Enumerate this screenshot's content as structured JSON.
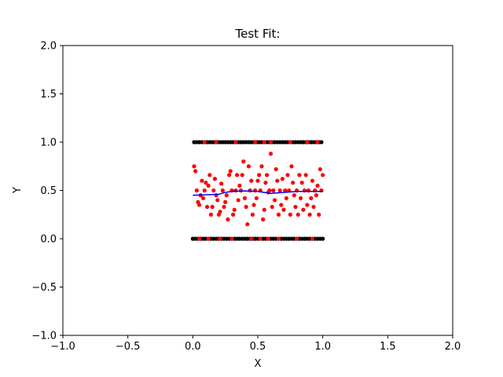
{
  "chart_data": {
    "type": "scatter",
    "title": "Test Fit:",
    "xlabel": "X",
    "ylabel": "Y",
    "xlim": [
      -1.0,
      2.0
    ],
    "ylim": [
      -1.0,
      2.0
    ],
    "xticks": [
      "−1.0",
      "−0.5",
      "0.0",
      "0.5",
      "1.0",
      "1.5",
      "2.0"
    ],
    "xtick_values": [
      -1.0,
      -0.5,
      0.0,
      0.5,
      1.0,
      1.5,
      2.0
    ],
    "yticks": [
      "−1.0",
      "−0.5",
      "0.0",
      "0.5",
      "1.0",
      "1.5",
      "2.0"
    ],
    "ytick_values": [
      -1.0,
      -0.5,
      0.0,
      0.5,
      1.0,
      1.5,
      2.0
    ],
    "grid": false,
    "colors": {
      "training_points": "#000000",
      "predicted_points": "#ff0000",
      "fit_line": "#0000ff"
    },
    "series": [
      {
        "style": "black-dots",
        "points": [
          [
            0.0,
            0
          ],
          [
            0.02,
            0
          ],
          [
            0.04,
            0
          ],
          [
            0.06,
            0
          ],
          [
            0.08,
            0
          ],
          [
            0.1,
            0
          ],
          [
            0.12,
            0
          ],
          [
            0.14,
            0
          ],
          [
            0.16,
            0
          ],
          [
            0.18,
            0
          ],
          [
            0.2,
            0
          ],
          [
            0.22,
            0
          ],
          [
            0.24,
            0
          ],
          [
            0.26,
            0
          ],
          [
            0.28,
            0
          ],
          [
            0.3,
            0
          ],
          [
            0.32,
            0
          ],
          [
            0.34,
            0
          ],
          [
            0.36,
            0
          ],
          [
            0.38,
            0
          ],
          [
            0.4,
            0
          ],
          [
            0.42,
            0
          ],
          [
            0.44,
            0
          ],
          [
            0.46,
            0
          ],
          [
            0.48,
            0
          ],
          [
            0.5,
            0
          ],
          [
            0.52,
            0
          ],
          [
            0.54,
            0
          ],
          [
            0.56,
            0
          ],
          [
            0.58,
            0
          ],
          [
            0.6,
            0
          ],
          [
            0.62,
            0
          ],
          [
            0.64,
            0
          ],
          [
            0.66,
            0
          ],
          [
            0.68,
            0
          ],
          [
            0.7,
            0
          ],
          [
            0.72,
            0
          ],
          [
            0.74,
            0
          ],
          [
            0.76,
            0
          ],
          [
            0.78,
            0
          ],
          [
            0.8,
            0
          ],
          [
            0.82,
            0
          ],
          [
            0.84,
            0
          ],
          [
            0.86,
            0
          ],
          [
            0.88,
            0
          ],
          [
            0.9,
            0
          ],
          [
            0.92,
            0
          ],
          [
            0.94,
            0
          ],
          [
            0.96,
            0
          ],
          [
            0.98,
            0
          ],
          [
            1.0,
            0
          ],
          [
            0.01,
            1
          ],
          [
            0.03,
            1
          ],
          [
            0.05,
            1
          ],
          [
            0.07,
            1
          ],
          [
            0.09,
            1
          ],
          [
            0.11,
            1
          ],
          [
            0.13,
            1
          ],
          [
            0.15,
            1
          ],
          [
            0.17,
            1
          ],
          [
            0.19,
            1
          ],
          [
            0.21,
            1
          ],
          [
            0.23,
            1
          ],
          [
            0.25,
            1
          ],
          [
            0.27,
            1
          ],
          [
            0.29,
            1
          ],
          [
            0.31,
            1
          ],
          [
            0.33,
            1
          ],
          [
            0.35,
            1
          ],
          [
            0.37,
            1
          ],
          [
            0.39,
            1
          ],
          [
            0.41,
            1
          ],
          [
            0.43,
            1
          ],
          [
            0.45,
            1
          ],
          [
            0.47,
            1
          ],
          [
            0.49,
            1
          ],
          [
            0.51,
            1
          ],
          [
            0.53,
            1
          ],
          [
            0.55,
            1
          ],
          [
            0.57,
            1
          ],
          [
            0.59,
            1
          ],
          [
            0.61,
            1
          ],
          [
            0.63,
            1
          ],
          [
            0.65,
            1
          ],
          [
            0.67,
            1
          ],
          [
            0.69,
            1
          ],
          [
            0.71,
            1
          ],
          [
            0.73,
            1
          ],
          [
            0.75,
            1
          ],
          [
            0.77,
            1
          ],
          [
            0.79,
            1
          ],
          [
            0.81,
            1
          ],
          [
            0.83,
            1
          ],
          [
            0.85,
            1
          ],
          [
            0.87,
            1
          ],
          [
            0.89,
            1
          ],
          [
            0.91,
            1
          ],
          [
            0.93,
            1
          ],
          [
            0.95,
            1
          ],
          [
            0.97,
            1
          ],
          [
            0.99,
            1
          ]
        ]
      },
      {
        "style": "red-dots",
        "points": [
          [
            0.01,
            0.75
          ],
          [
            0.02,
            0.7
          ],
          [
            0.03,
            0.5
          ],
          [
            0.04,
            0.38
          ],
          [
            0.05,
            0.35
          ],
          [
            0.06,
            0.45
          ],
          [
            0.07,
            0.6
          ],
          [
            0.08,
            0.42
          ],
          [
            0.09,
            0.5
          ],
          [
            0.1,
            0.58
          ],
          [
            0.11,
            0.33
          ],
          [
            0.12,
            0.55
          ],
          [
            0.13,
            0.66
          ],
          [
            0.14,
            0.25
          ],
          [
            0.15,
            0.33
          ],
          [
            0.16,
            0.5
          ],
          [
            0.17,
            0.62
          ],
          [
            0.18,
            0.45
          ],
          [
            0.19,
            0.4
          ],
          [
            0.2,
            0.25
          ],
          [
            0.21,
            0.28
          ],
          [
            0.22,
            0.57
          ],
          [
            0.23,
            0.5
          ],
          [
            0.24,
            0.33
          ],
          [
            0.25,
            0.38
          ],
          [
            0.26,
            0.45
          ],
          [
            0.27,
            0.2
          ],
          [
            0.28,
            0.66
          ],
          [
            0.29,
            0.7
          ],
          [
            0.3,
            0.5
          ],
          [
            0.31,
            0.25
          ],
          [
            0.32,
            0.3
          ],
          [
            0.33,
            0.5
          ],
          [
            0.34,
            0.66
          ],
          [
            0.35,
            0.4
          ],
          [
            0.36,
            0.55
          ],
          [
            0.37,
            0.5
          ],
          [
            0.38,
            0.66
          ],
          [
            0.39,
            0.8
          ],
          [
            0.4,
            0.42
          ],
          [
            0.41,
            0.33
          ],
          [
            0.42,
            0.15
          ],
          [
            0.43,
            0.75
          ],
          [
            0.44,
            0.5
          ],
          [
            0.45,
            0.6
          ],
          [
            0.46,
            0.25
          ],
          [
            0.47,
            0.35
          ],
          [
            0.48,
            0.5
          ],
          [
            0.49,
            0.42
          ],
          [
            0.5,
            0.6
          ],
          [
            0.51,
            0.66
          ],
          [
            0.52,
            0.5
          ],
          [
            0.53,
            0.75
          ],
          [
            0.54,
            0.2
          ],
          [
            0.55,
            0.3
          ],
          [
            0.56,
            0.58
          ],
          [
            0.57,
            0.66
          ],
          [
            0.58,
            0.48
          ],
          [
            0.59,
            0.5
          ],
          [
            0.6,
            0.88
          ],
          [
            0.61,
            0.33
          ],
          [
            0.62,
            0.5
          ],
          [
            0.63,
            0.4
          ],
          [
            0.64,
            0.72
          ],
          [
            0.65,
            0.6
          ],
          [
            0.66,
            0.25
          ],
          [
            0.67,
            0.5
          ],
          [
            0.68,
            0.35
          ],
          [
            0.69,
            0.62
          ],
          [
            0.7,
            0.3
          ],
          [
            0.71,
            0.5
          ],
          [
            0.72,
            0.42
          ],
          [
            0.73,
            0.66
          ],
          [
            0.74,
            0.5
          ],
          [
            0.75,
            0.25
          ],
          [
            0.76,
            0.75
          ],
          [
            0.77,
            0.58
          ],
          [
            0.78,
            0.45
          ],
          [
            0.79,
            0.33
          ],
          [
            0.8,
            0.5
          ],
          [
            0.81,
            0.25
          ],
          [
            0.82,
            0.66
          ],
          [
            0.83,
            0.42
          ],
          [
            0.84,
            0.58
          ],
          [
            0.85,
            0.3
          ],
          [
            0.86,
            0.5
          ],
          [
            0.87,
            0.66
          ],
          [
            0.88,
            0.35
          ],
          [
            0.89,
            0.5
          ],
          [
            0.9,
            0.25
          ],
          [
            0.91,
            0.42
          ],
          [
            0.92,
            0.6
          ],
          [
            0.93,
            0.33
          ],
          [
            0.94,
            0.5
          ],
          [
            0.95,
            0.45
          ],
          [
            0.96,
            0.55
          ],
          [
            0.97,
            0.25
          ],
          [
            0.98,
            0.72
          ],
          [
            0.99,
            0.5
          ],
          [
            1.0,
            0.66
          ],
          [
            0.05,
            0.0
          ],
          [
            0.12,
            0.0
          ],
          [
            0.21,
            0.0
          ],
          [
            0.3,
            0.0
          ],
          [
            0.45,
            0.0
          ],
          [
            0.52,
            0.0
          ],
          [
            0.58,
            0.0
          ],
          [
            0.66,
            0.0
          ],
          [
            0.8,
            0.0
          ],
          [
            0.92,
            0.0
          ],
          [
            0.09,
            1.0
          ],
          [
            0.18,
            1.0
          ],
          [
            0.33,
            1.0
          ],
          [
            0.48,
            1.0
          ],
          [
            0.55,
            1.0
          ],
          [
            0.6,
            1.0
          ],
          [
            0.75,
            1.0
          ],
          [
            0.88,
            1.0
          ],
          [
            0.96,
            1.0
          ]
        ]
      },
      {
        "style": "blue-line",
        "points": [
          [
            0.0,
            0.45
          ],
          [
            0.1,
            0.455
          ],
          [
            0.2,
            0.46
          ],
          [
            0.25,
            0.48
          ],
          [
            0.3,
            0.49
          ],
          [
            0.4,
            0.495
          ],
          [
            0.5,
            0.49
          ],
          [
            0.55,
            0.48
          ],
          [
            0.6,
            0.47
          ],
          [
            0.7,
            0.48
          ],
          [
            0.8,
            0.49
          ],
          [
            0.9,
            0.49
          ],
          [
            1.0,
            0.49
          ]
        ]
      }
    ]
  }
}
